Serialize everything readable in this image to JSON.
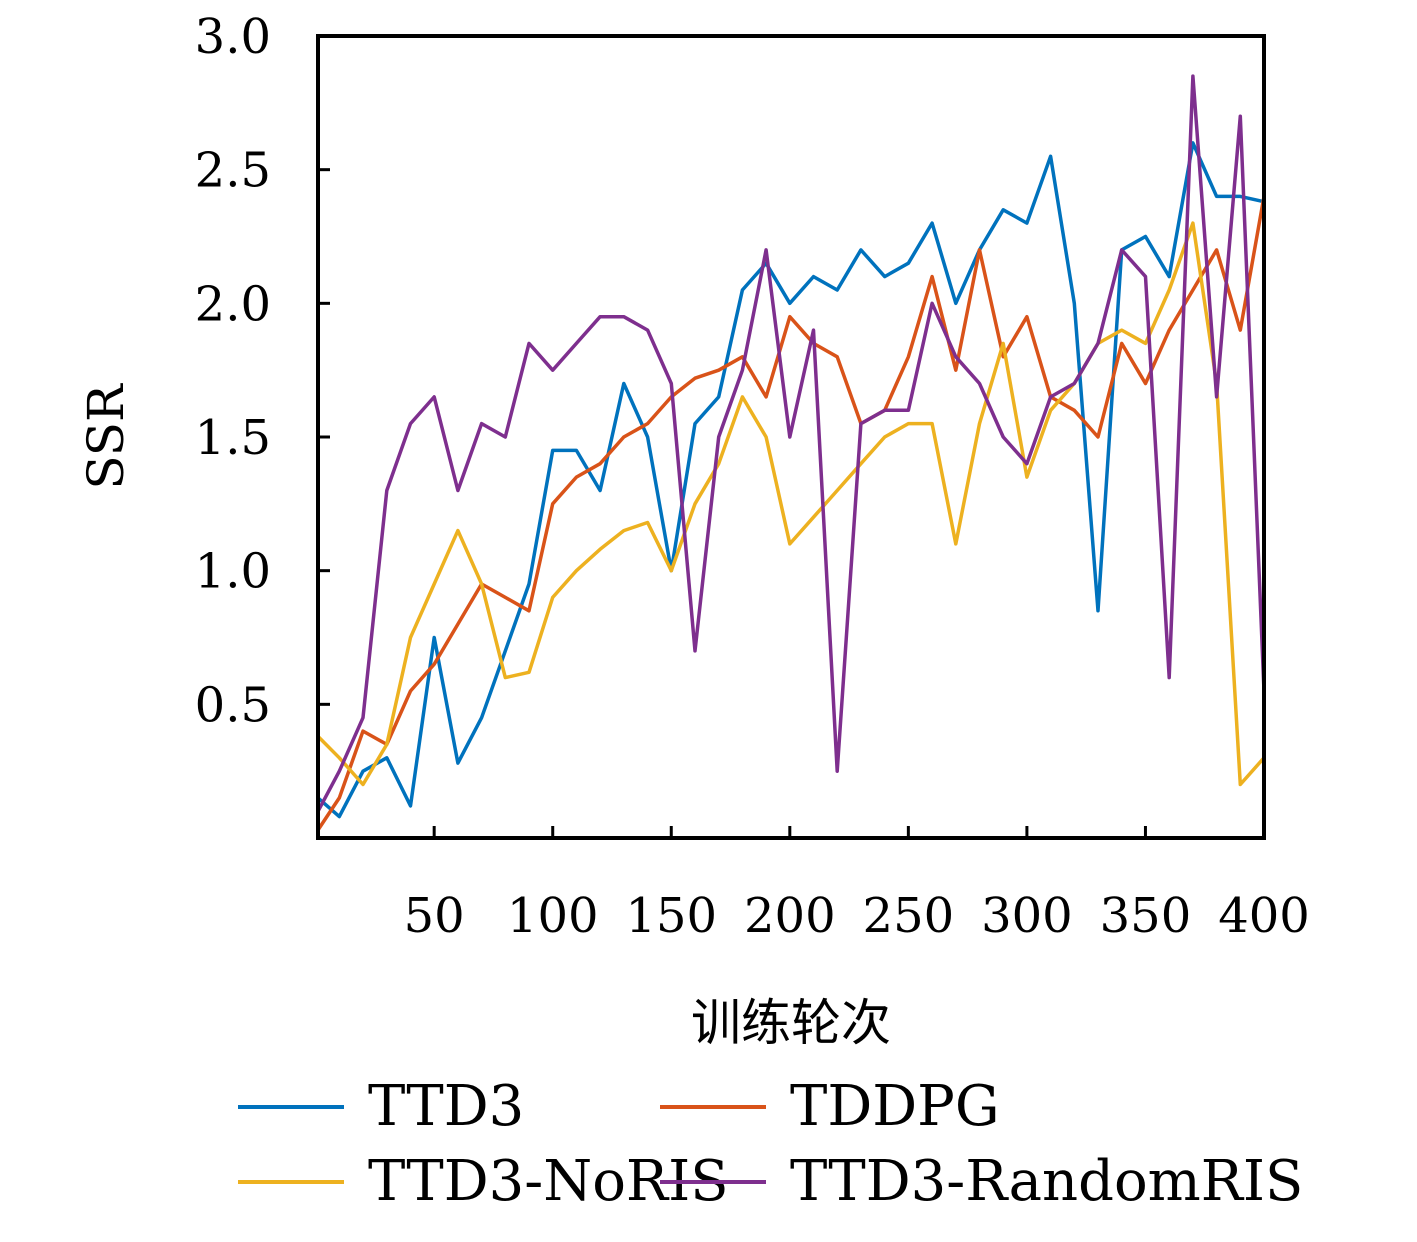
{
  "chart_data": {
    "type": "line",
    "xlabel": "训练轮次",
    "ylabel": "SSR",
    "xlim": [
      1,
      400
    ],
    "ylim": [
      0,
      3.0
    ],
    "x_ticks": [
      50,
      100,
      150,
      200,
      250,
      300,
      350,
      400
    ],
    "x_tick_labels": [
      "50",
      "100",
      "150",
      "200",
      "250",
      "300",
      "350",
      "400"
    ],
    "y_ticks": [
      0.5,
      1.0,
      1.5,
      2.0,
      2.5,
      3.0
    ],
    "y_tick_labels": [
      "0.5",
      "1.0",
      "1.5",
      "2.0",
      "2.5",
      "3.0"
    ],
    "grid": false,
    "legend_position": "bottom",
    "x": [
      1,
      10,
      20,
      30,
      40,
      50,
      60,
      70,
      80,
      90,
      100,
      110,
      120,
      130,
      140,
      150,
      160,
      170,
      180,
      190,
      200,
      210,
      220,
      230,
      240,
      250,
      260,
      270,
      280,
      290,
      300,
      310,
      320,
      330,
      340,
      350,
      360,
      370,
      380,
      390,
      400
    ],
    "series": [
      {
        "name": "TTD3",
        "color": "#0072BD",
        "values": [
          0.15,
          0.08,
          0.25,
          0.3,
          0.12,
          0.75,
          0.28,
          0.45,
          0.7,
          0.95,
          1.45,
          1.45,
          1.3,
          1.7,
          1.5,
          1.0,
          1.55,
          1.65,
          2.05,
          2.15,
          2.0,
          2.1,
          2.05,
          2.2,
          2.1,
          2.15,
          2.3,
          2.0,
          2.2,
          2.35,
          2.3,
          2.55,
          2.0,
          0.85,
          2.2,
          2.25,
          2.1,
          2.6,
          2.4,
          2.4,
          2.38
        ]
      },
      {
        "name": "TDDPG",
        "color": "#D95319",
        "values": [
          0.03,
          0.15,
          0.4,
          0.35,
          0.55,
          0.65,
          0.8,
          0.95,
          0.9,
          0.85,
          1.25,
          1.35,
          1.4,
          1.5,
          1.55,
          1.65,
          1.72,
          1.75,
          1.8,
          1.65,
          1.95,
          1.85,
          1.8,
          1.55,
          1.6,
          1.8,
          2.1,
          1.75,
          2.2,
          1.8,
          1.95,
          1.65,
          1.6,
          1.5,
          1.85,
          1.7,
          1.9,
          2.05,
          2.2,
          1.9,
          2.4
        ]
      },
      {
        "name": "TTD3-NoRIS",
        "color": "#EDB120",
        "values": [
          0.38,
          0.3,
          0.2,
          0.35,
          0.75,
          0.95,
          1.15,
          0.95,
          0.6,
          0.62,
          0.9,
          1.0,
          1.08,
          1.15,
          1.18,
          1.0,
          1.25,
          1.4,
          1.65,
          1.5,
          1.1,
          1.2,
          1.3,
          1.4,
          1.5,
          1.55,
          1.55,
          1.1,
          1.55,
          1.85,
          1.35,
          1.6,
          1.7,
          1.85,
          1.9,
          1.85,
          2.05,
          2.3,
          1.7,
          0.2,
          0.3
        ]
      },
      {
        "name": "TTD3-RandomRIS",
        "color": "#7E2F8E",
        "values": [
          0.1,
          0.25,
          0.45,
          1.3,
          1.55,
          1.65,
          1.3,
          1.55,
          1.5,
          1.85,
          1.75,
          1.85,
          1.95,
          1.95,
          1.9,
          1.7,
          0.7,
          1.5,
          1.75,
          2.2,
          1.5,
          1.9,
          0.25,
          1.55,
          1.6,
          1.6,
          2.0,
          1.8,
          1.7,
          1.5,
          1.4,
          1.65,
          1.7,
          1.85,
          2.2,
          2.1,
          0.6,
          2.85,
          1.65,
          2.7,
          0.55
        ]
      }
    ]
  }
}
